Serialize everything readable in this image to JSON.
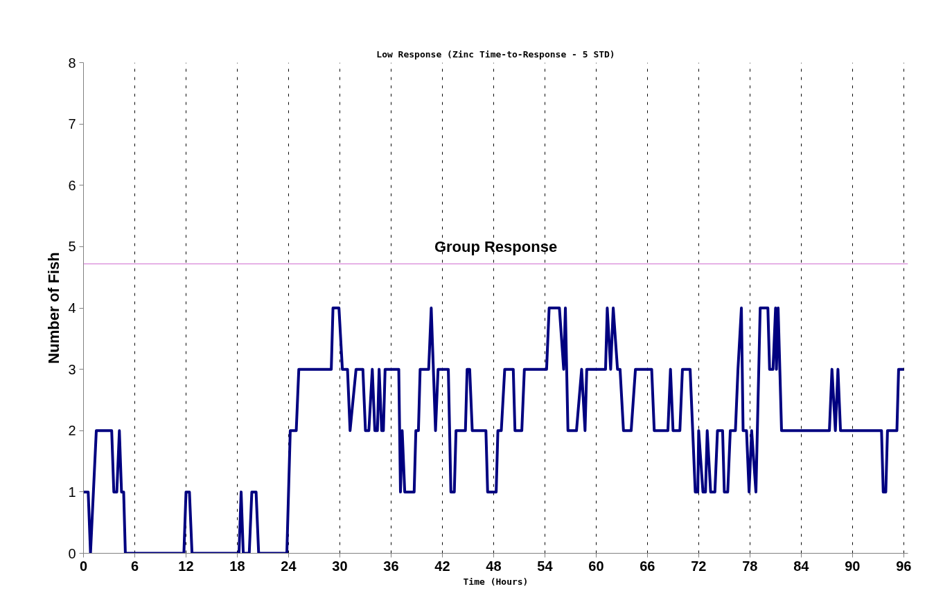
{
  "chart_data": {
    "type": "line",
    "title": "Low Response (Zinc Time-to-Response - 5 STD)",
    "xlabel": "Time (Hours)",
    "ylabel": "Number of Fish",
    "x": [
      0,
      0.55,
      0.82,
      1.5,
      3.3,
      3.55,
      3.9,
      4.2,
      4.45,
      4.7,
      4.9,
      11.75,
      12.0,
      12.4,
      12.7,
      18.2,
      18.45,
      18.7,
      19.4,
      19.7,
      20.2,
      20.5,
      23.8,
      24.2,
      24.9,
      25.2,
      29.0,
      29.2,
      29.9,
      30.3,
      30.9,
      31.2,
      31.9,
      32.7,
      33.0,
      33.4,
      33.8,
      34.1,
      34.4,
      34.6,
      34.9,
      35.1,
      35.3,
      36.9,
      37.1,
      37.3,
      37.6,
      38.7,
      38.9,
      39.2,
      39.4,
      40.4,
      40.7,
      41.2,
      41.5,
      42.7,
      43.0,
      43.4,
      43.6,
      44.7,
      44.9,
      45.2,
      45.5,
      47.1,
      47.3,
      48.3,
      48.5,
      48.9,
      49.3,
      50.3,
      50.5,
      51.3,
      51.6,
      54.2,
      54.5,
      55.7,
      56.2,
      56.4,
      56.7,
      57.7,
      58.3,
      58.7,
      58.9,
      61.1,
      61.3,
      61.7,
      62.0,
      62.5,
      62.8,
      63.2,
      64.1,
      64.6,
      66.5,
      66.8,
      68.4,
      68.7,
      69.0,
      69.8,
      70.1,
      71.0,
      71.3,
      71.6,
      71.9,
      72.0,
      72.5,
      72.8,
      73.0,
      73.4,
      73.9,
      74.2,
      74.8,
      75.0,
      75.4,
      75.7,
      76.3,
      76.6,
      77.0,
      77.2,
      77.6,
      77.9,
      78.2,
      78.7,
      79.2,
      80.1,
      80.3,
      80.7,
      81.0,
      81.1,
      81.3,
      81.7,
      87.3,
      87.6,
      88.0,
      88.3,
      88.6,
      93.4,
      93.6,
      93.9,
      94.1,
      95.2,
      95.4,
      96
    ],
    "series": [
      {
        "color": "#000080",
        "values": [
          1,
          1,
          0,
          2,
          2,
          1,
          1,
          2,
          1,
          1,
          0,
          0,
          1,
          1,
          0,
          0,
          1,
          0,
          0,
          1,
          1,
          0,
          0,
          2,
          2,
          3,
          3,
          4,
          4,
          3,
          3,
          2,
          3,
          3,
          2,
          2,
          3,
          2,
          2,
          3,
          2,
          2,
          3,
          3,
          1,
          2,
          1,
          1,
          2,
          2,
          3,
          3,
          4,
          2,
          3,
          3,
          1,
          1,
          2,
          2,
          3,
          3,
          2,
          2,
          1,
          1,
          2,
          2,
          3,
          3,
          2,
          2,
          3,
          3,
          4,
          4,
          3,
          4,
          2,
          2,
          3,
          2,
          3,
          3,
          4,
          3,
          4,
          3,
          3,
          2,
          2,
          3,
          3,
          2,
          2,
          3,
          2,
          2,
          3,
          3,
          2,
          1,
          1,
          2,
          1,
          1,
          2,
          1,
          1,
          2,
          2,
          1,
          1,
          2,
          2,
          3,
          4,
          2,
          2,
          1,
          2,
          1,
          4,
          4,
          3,
          3,
          4,
          3,
          4,
          2,
          2,
          3,
          2,
          3,
          2,
          2,
          1,
          1,
          2,
          2,
          3,
          3
        ]
      }
    ],
    "xlim": [
      0,
      96.5
    ],
    "xticks": [
      0,
      6,
      12,
      18,
      24,
      30,
      36,
      42,
      48,
      54,
      60,
      66,
      72,
      78,
      84,
      90,
      96
    ],
    "ylim": [
      0,
      8
    ],
    "yticks": [
      0,
      1,
      2,
      3,
      4,
      5,
      6,
      7,
      8
    ],
    "grid": "x",
    "marker": "none",
    "line_style": "solid",
    "ref_lines": [
      {
        "axis": "y",
        "value": 4.72,
        "label": "Group Response",
        "color": "#cc66cc"
      }
    ]
  }
}
